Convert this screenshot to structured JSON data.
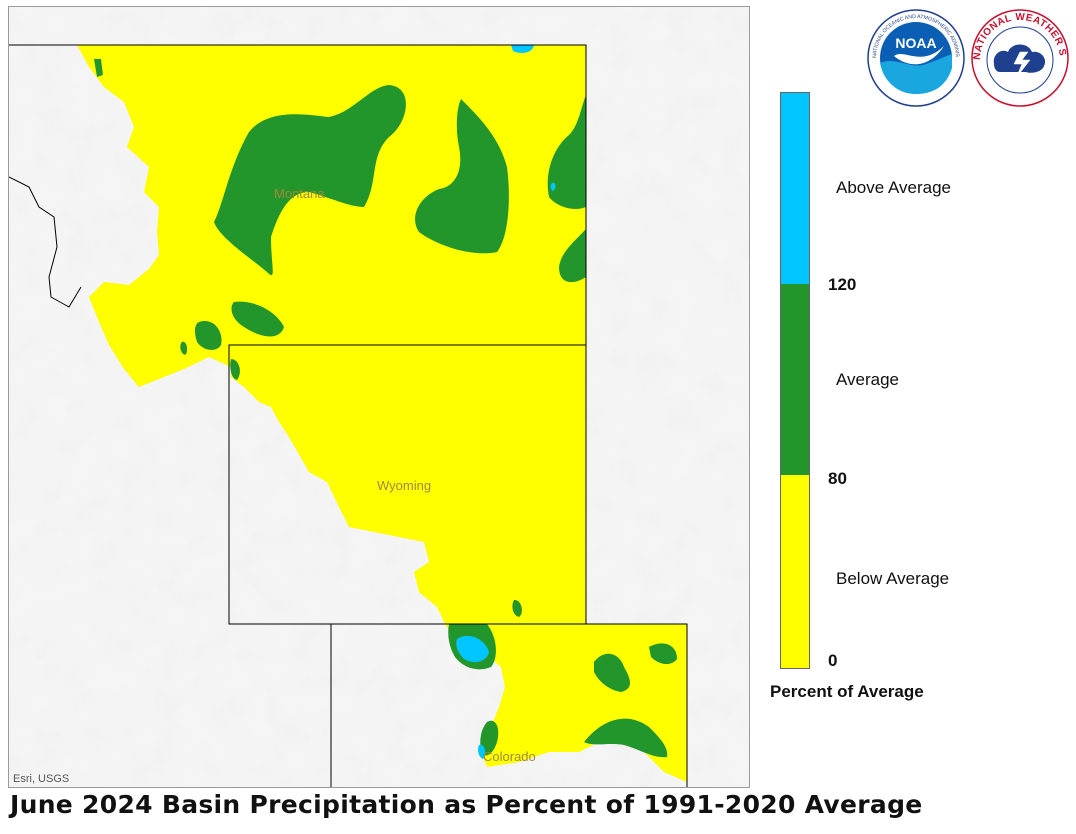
{
  "title": "June 2024 Basin Precipitation as Percent of 1991-2020 Average",
  "map": {
    "attribution": "Esri, USGS",
    "state_labels": [
      "Montana",
      "Wyoming",
      "Colorado"
    ]
  },
  "legend": {
    "title": "Percent of Average",
    "categories": [
      {
        "label": "Above Average",
        "color": "#00c5ff"
      },
      {
        "label": "Average",
        "color": "#22962a"
      },
      {
        "label": "Below Average",
        "color": "#ffff00"
      }
    ],
    "ticks": [
      "120",
      "80",
      "0"
    ]
  },
  "logos": {
    "noaa_text": "NOAA",
    "noaa_ring": "NATIONAL OCEANIC AND ATMOSPHERIC ADMINISTRATION · U.S. DEPARTMENT OF COMMERCE",
    "nws_ring": "NATIONAL WEATHER SERVICE"
  },
  "colors": {
    "below": "#ffff00",
    "average": "#22962a",
    "above": "#00c5ff",
    "background_terrain": "#f4f4f4",
    "border": "#000000"
  }
}
